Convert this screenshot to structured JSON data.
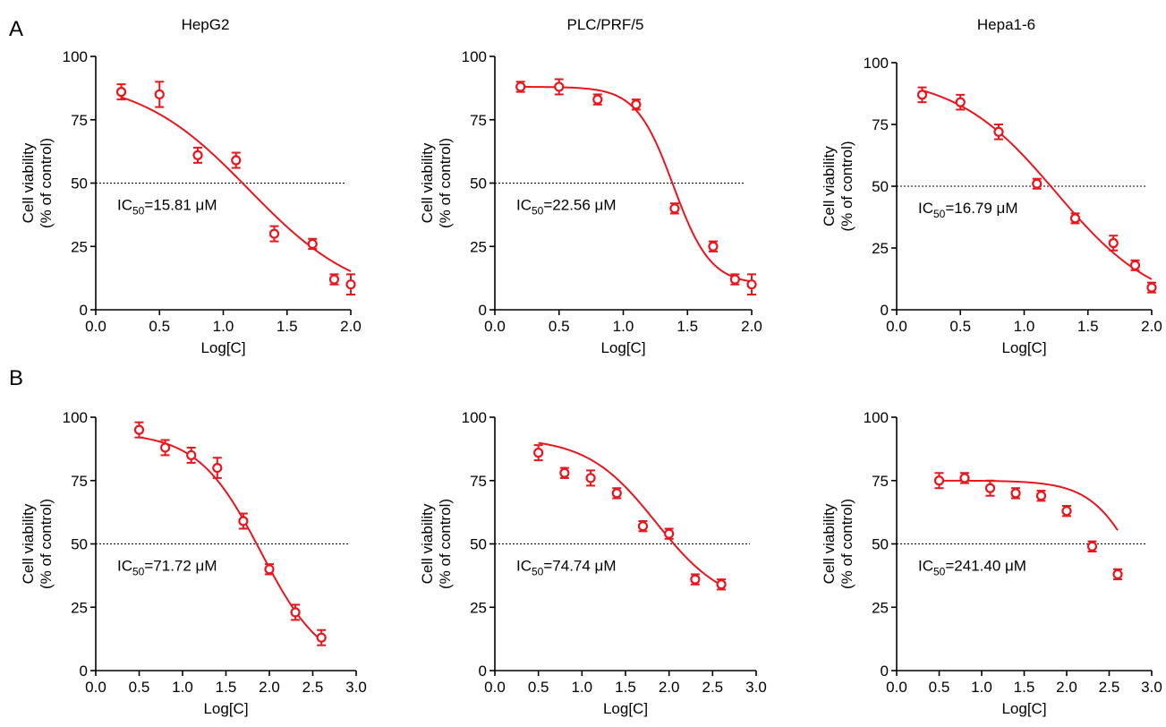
{
  "panel_letters": [
    "A",
    "B"
  ],
  "ic50_reference_line": 50,
  "colors": {
    "series": "#e8161d",
    "axis": "#000000",
    "reference_line": "#000000"
  },
  "chart_data": [
    {
      "type": "scatter",
      "panel": "A",
      "title": "HepG2",
      "xlabel": "Log[C]",
      "ylabel": "Cell viability",
      "ylabel2": "(% of control)",
      "xlim": [
        0,
        2
      ],
      "ylim": [
        0,
        100
      ],
      "xticks": [
        0,
        0.5,
        1,
        1.5,
        2
      ],
      "xtick_labels": [
        "0.0",
        "0.5",
        "1.0",
        "1.5",
        "2.0"
      ],
      "yticks": [
        0,
        25,
        50,
        75,
        100
      ],
      "ytick_labels": [
        "0",
        "25",
        "50",
        "75",
        "100"
      ],
      "ic50_label": "IC50=15.81 μM",
      "ic50_value": 15.81,
      "fit": {
        "top": 92,
        "bottom": 3,
        "log_ic50": 1.2,
        "hill": 1.0
      },
      "x": [
        0.2,
        0.5,
        0.8,
        1.1,
        1.4,
        1.7,
        1.87,
        2.0
      ],
      "y": [
        86,
        85,
        61,
        59,
        30,
        26,
        12,
        10
      ],
      "err": [
        3,
        5,
        3,
        3,
        3,
        2,
        2,
        4
      ]
    },
    {
      "type": "scatter",
      "panel": "A",
      "title": "PLC/PRF/5",
      "xlabel": "Log[C]",
      "ylabel": "Cell viability",
      "ylabel2": "(% of control)",
      "xlim": [
        0,
        2
      ],
      "ylim": [
        0,
        100
      ],
      "xticks": [
        0,
        0.5,
        1,
        1.5,
        2
      ],
      "xtick_labels": [
        "0.0",
        "0.5",
        "1.0",
        "1.5",
        "2.0"
      ],
      "yticks": [
        0,
        25,
        50,
        75,
        100
      ],
      "ytick_labels": [
        "0",
        "25",
        "50",
        "75",
        "100"
      ],
      "ic50_label": "IC50=22.56 μM",
      "ic50_value": 22.56,
      "fit": {
        "top": 88,
        "bottom": 10,
        "log_ic50": 1.39,
        "hill": 3.0
      },
      "x": [
        0.2,
        0.5,
        0.8,
        1.1,
        1.4,
        1.7,
        1.87,
        2.0
      ],
      "y": [
        88,
        88,
        83,
        81,
        40,
        25,
        12,
        10
      ],
      "err": [
        2,
        3,
        2,
        2,
        2,
        2,
        2,
        4
      ]
    },
    {
      "type": "scatter",
      "panel": "A",
      "title": "Hepa1-6",
      "xlabel": "Log[C]",
      "ylabel": "Cell viability",
      "ylabel2": "(% of control)",
      "xlim": [
        0,
        2
      ],
      "ylim": [
        0,
        100
      ],
      "xticks": [
        0,
        0.5,
        1,
        1.5,
        2
      ],
      "xtick_labels": [
        "0.0",
        "0.5",
        "1.0",
        "1.5",
        "2.0"
      ],
      "yticks": [
        0,
        25,
        50,
        75,
        100
      ],
      "ytick_labels": [
        "0",
        "25",
        "50",
        "75",
        "100"
      ],
      "ic50_label": "IC50=16.79 μM",
      "ic50_value": 16.79,
      "fit": {
        "top": 95,
        "bottom": 0,
        "log_ic50": 1.25,
        "hill": 1.1
      },
      "x": [
        0.2,
        0.5,
        0.8,
        1.1,
        1.4,
        1.7,
        1.87,
        2.0
      ],
      "y": [
        87,
        84,
        72,
        51,
        37,
        27,
        18,
        9
      ],
      "err": [
        3,
        3,
        3,
        2,
        2,
        3,
        2,
        2
      ]
    },
    {
      "type": "scatter",
      "panel": "B",
      "title": "",
      "xlabel": "Log[C]",
      "ylabel": "Cell viability",
      "ylabel2": "(% of control)",
      "xlim": [
        0,
        3
      ],
      "ylim": [
        0,
        100
      ],
      "xticks": [
        0,
        0.5,
        1,
        1.5,
        2,
        2.5,
        3
      ],
      "xtick_labels": [
        "0.0",
        "0.5",
        "1.0",
        "1.5",
        "2.0",
        "2.5",
        "3.0"
      ],
      "yticks": [
        0,
        25,
        50,
        75,
        100
      ],
      "ytick_labels": [
        "0",
        "25",
        "50",
        "75",
        "100"
      ],
      "ic50_label": "IC50=71.72 μM",
      "ic50_value": 71.72,
      "fit": {
        "top": 94,
        "bottom": 0,
        "log_ic50": 1.9,
        "hill": 1.2
      },
      "x": [
        0.5,
        0.8,
        1.1,
        1.4,
        1.7,
        2.0,
        2.3,
        2.6
      ],
      "y": [
        95,
        88,
        85,
        80,
        59,
        40,
        23,
        13
      ],
      "err": [
        3,
        3,
        3,
        4,
        3,
        2,
        3,
        3
      ]
    },
    {
      "type": "scatter",
      "panel": "B",
      "title": "",
      "xlabel": "Log[C]",
      "ylabel": "Cell viability",
      "ylabel2": "(% of control)",
      "xlim": [
        0,
        3
      ],
      "ylim": [
        0,
        100
      ],
      "xticks": [
        0,
        0.5,
        1,
        1.5,
        2,
        2.5,
        3
      ],
      "xtick_labels": [
        "0.0",
        "0.5",
        "1.0",
        "1.5",
        "2.0",
        "2.5",
        "3.0"
      ],
      "yticks": [
        0,
        25,
        50,
        75,
        100
      ],
      "ytick_labels": [
        "0",
        "25",
        "50",
        "75",
        "100"
      ],
      "ic50_label": "IC50=74.74 μM",
      "ic50_value": 74.74,
      "fit": {
        "top": 92,
        "bottom": 25,
        "log_ic50": 1.85,
        "hill": 1.1
      },
      "x": [
        0.5,
        0.8,
        1.1,
        1.4,
        1.7,
        2.0,
        2.3,
        2.6
      ],
      "y": [
        86,
        78,
        76,
        70,
        57,
        54,
        36,
        34
      ],
      "err": [
        3,
        2,
        3,
        2,
        2,
        2,
        2,
        2
      ]
    },
    {
      "type": "scatter",
      "panel": "B",
      "title": "",
      "xlabel": "Log[C]",
      "ylabel": "Cell viability",
      "ylabel2": "(% of control)",
      "xlim": [
        0,
        3
      ],
      "ylim": [
        0,
        100
      ],
      "xticks": [
        0,
        0.5,
        1,
        1.5,
        2,
        2.5,
        3
      ],
      "xtick_labels": [
        "0.0",
        "0.5",
        "1.0",
        "1.5",
        "2.0",
        "2.5",
        "3.0"
      ],
      "yticks": [
        0,
        25,
        50,
        75,
        100
      ],
      "ytick_labels": [
        "0",
        "25",
        "50",
        "75",
        "100"
      ],
      "ic50_label": "IC50=241.40 μM",
      "ic50_value": 241.4,
      "fit": {
        "top": 75,
        "bottom": 0,
        "log_ic50": 2.9,
        "hill": 1.5
      },
      "x": [
        0.5,
        0.8,
        1.1,
        1.4,
        1.7,
        2.0,
        2.3,
        2.6
      ],
      "y": [
        75,
        76,
        72,
        70,
        69,
        63,
        49,
        38
      ],
      "err": [
        3,
        2,
        3,
        2,
        2,
        2,
        2,
        2
      ]
    }
  ]
}
